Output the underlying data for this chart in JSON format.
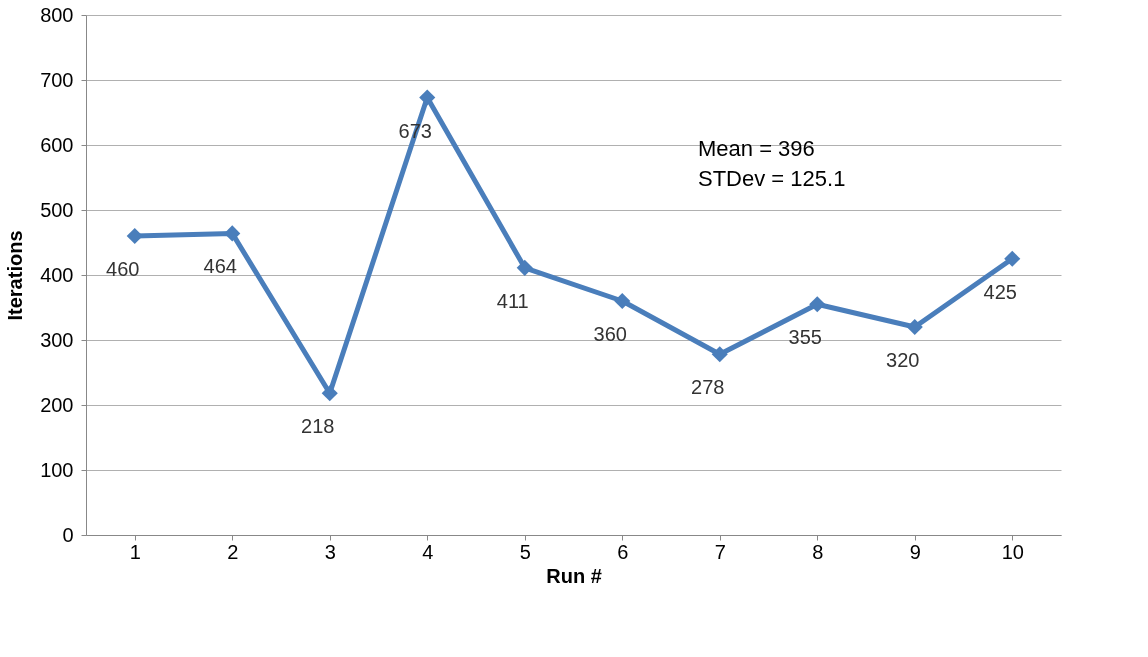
{
  "chart_data": {
    "type": "line",
    "xlabel": "Run #",
    "ylabel": "Iterations",
    "categories": [
      "1",
      "2",
      "3",
      "4",
      "5",
      "6",
      "7",
      "8",
      "9",
      "10"
    ],
    "series": [
      {
        "color": "#4a7ebb",
        "values": [
          460,
          464,
          218,
          673,
          411,
          360,
          278,
          355,
          320,
          425
        ]
      }
    ],
    "ylim": [
      0,
      800
    ],
    "yticks": [
      0,
      100,
      200,
      300,
      400,
      500,
      600,
      700,
      800
    ],
    "grid": "y",
    "marker": "diamond",
    "line_style": "solid",
    "data_labels": true,
    "annotations": [
      "Mean = 396",
      "STDev = 125.1"
    ]
  }
}
